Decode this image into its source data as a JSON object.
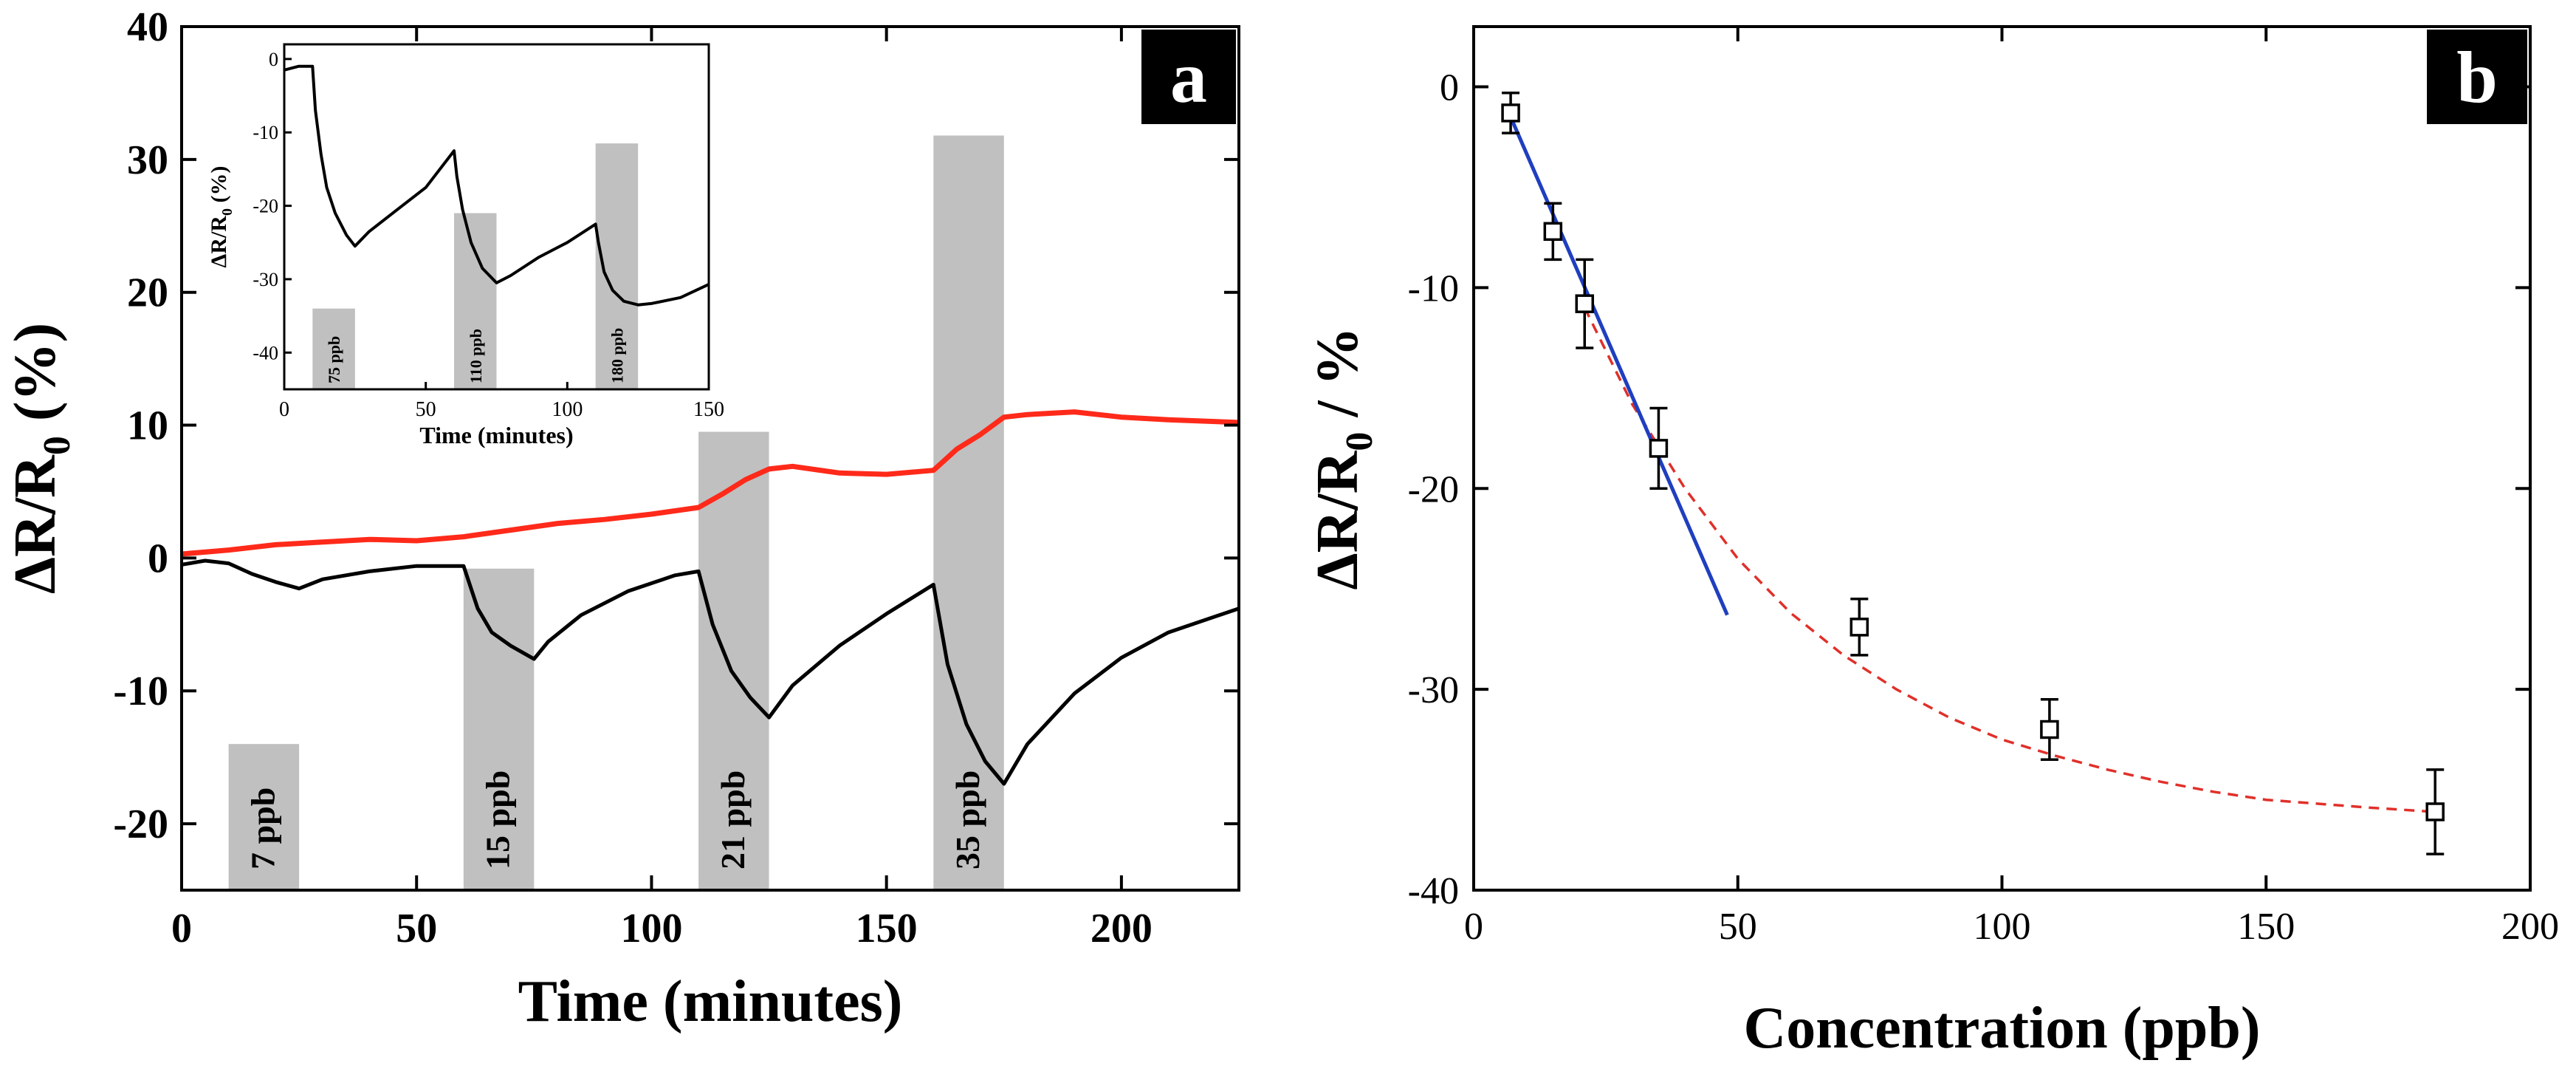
{
  "chart_data": [
    {
      "panel": "a",
      "panel_label": "a",
      "type": "line",
      "xlabel": "Time (minutes)",
      "ylabel_main": "ΔR/R",
      "ylabel_sub": "0",
      "ylabel_tail": " (%)",
      "xlim": [
        0,
        225
      ],
      "ylim": [
        -25,
        40
      ],
      "xticks": [
        0,
        50,
        100,
        150,
        200
      ],
      "yticks": [
        -20,
        -10,
        0,
        10,
        20,
        30,
        40
      ],
      "exposures": [
        {
          "label": "7 ppb",
          "x_start": 10,
          "x_end": 25,
          "y_top": -14
        },
        {
          "label": "15 ppb",
          "x_start": 60,
          "x_end": 75,
          "y_top": -0.8
        },
        {
          "label": "21 ppb",
          "x_start": 110,
          "x_end": 125,
          "y_top": 9.5
        },
        {
          "label": "35 ppb",
          "x_start": 160,
          "x_end": 175,
          "y_top": 31.8
        }
      ],
      "series": [
        {
          "name": "black response",
          "color": "#000000",
          "x": [
            0,
            5,
            10,
            15,
            20,
            25,
            30,
            40,
            50,
            60,
            63,
            66,
            70,
            75,
            78,
            85,
            95,
            105,
            110,
            113,
            117,
            121,
            125,
            130,
            140,
            150,
            160,
            163,
            167,
            171,
            175,
            180,
            190,
            200,
            210,
            225
          ],
          "values": [
            -0.5,
            -0.2,
            -0.4,
            -1.2,
            -1.8,
            -2.3,
            -1.6,
            -1.0,
            -0.6,
            -0.6,
            -3.8,
            -5.6,
            -6.6,
            -7.6,
            -6.3,
            -4.3,
            -2.5,
            -1.3,
            -1.0,
            -5.0,
            -8.5,
            -10.5,
            -12.0,
            -9.6,
            -6.6,
            -4.2,
            -2.0,
            -8.0,
            -12.5,
            -15.3,
            -17.0,
            -14.0,
            -10.2,
            -7.5,
            -5.6,
            -3.8
          ]
        },
        {
          "name": "red response",
          "color": "#ff2a1a",
          "x": [
            0,
            10,
            20,
            30,
            40,
            50,
            60,
            70,
            80,
            90,
            100,
            110,
            115,
            120,
            125,
            130,
            140,
            150,
            160,
            165,
            170,
            175,
            180,
            190,
            200,
            210,
            225
          ],
          "values": [
            0.3,
            0.6,
            1.0,
            1.2,
            1.4,
            1.3,
            1.6,
            2.1,
            2.6,
            2.9,
            3.3,
            3.8,
            4.8,
            5.9,
            6.7,
            6.9,
            6.4,
            6.3,
            6.6,
            8.2,
            9.3,
            10.6,
            10.8,
            11.0,
            10.6,
            10.4,
            10.2
          ]
        }
      ],
      "inset": {
        "xlabel": "Time (minutes)",
        "ylabel_main": "ΔR/R",
        "ylabel_sub": "0",
        "ylabel_tail": " (%)",
        "xlim": [
          0,
          150
        ],
        "ylim": [
          -45,
          2
        ],
        "xticks": [
          0,
          50,
          100,
          150
        ],
        "yticks": [
          0,
          -10,
          -20,
          -30,
          -40
        ],
        "exposures": [
          {
            "label": "75 ppb",
            "x_start": 10,
            "x_end": 25,
            "y_top": -34
          },
          {
            "label": "110 ppb",
            "x_start": 60,
            "x_end": 75,
            "y_top": -21
          },
          {
            "label": "180 ppb",
            "x_start": 110,
            "x_end": 125,
            "y_top": -11.5
          }
        ],
        "series": [
          {
            "name": "inset response",
            "color": "#000000",
            "x": [
              0,
              5,
              8,
              10,
              11,
              13,
              15,
              18,
              22,
              25,
              30,
              40,
              50,
              60,
              61,
              63,
              66,
              70,
              75,
              80,
              90,
              100,
              110,
              111,
              113,
              116,
              120,
              125,
              130,
              140,
              150
            ],
            "values": [
              -1.5,
              -1.0,
              -1.0,
              -1.0,
              -7,
              -13,
              -17.5,
              -21,
              -24,
              -25.5,
              -23.5,
              -20.5,
              -17.5,
              -12.5,
              -16,
              -20.5,
              -25,
              -28.5,
              -30.5,
              -29.5,
              -27,
              -25,
              -22.5,
              -25,
              -29,
              -31.5,
              -33,
              -33.5,
              -33.3,
              -32.5,
              -30.7
            ]
          }
        ]
      }
    },
    {
      "panel": "b",
      "panel_label": "b",
      "type": "scatter",
      "xlabel": "Concentration (ppb)",
      "ylabel_main": "ΔR/R",
      "ylabel_sub": "0",
      "ylabel_tail": " / %",
      "xlim": [
        0,
        200
      ],
      "ylim": [
        -40,
        3
      ],
      "xticks": [
        0,
        50,
        100,
        150,
        200
      ],
      "yticks": [
        0,
        -10,
        -20,
        -30,
        -40
      ],
      "points": [
        {
          "x": 7,
          "y": -1.3,
          "err": 1.0
        },
        {
          "x": 15,
          "y": -7.2,
          "err": 1.4
        },
        {
          "x": 21,
          "y": -10.8,
          "err": 2.2
        },
        {
          "x": 35,
          "y": -18.0,
          "err": 2.0
        },
        {
          "x": 73,
          "y": -26.9,
          "err": 1.4
        },
        {
          "x": 109,
          "y": -32.0,
          "err": 1.5
        },
        {
          "x": 182,
          "y": -36.1,
          "err": 2.1
        }
      ],
      "linear_fit": {
        "color": "#1f3fbf",
        "x": [
          7,
          48
        ],
        "y": [
          -1.5,
          -26.3
        ]
      },
      "curve_fit": {
        "color": "#e0302a",
        "x": [
          21,
          30,
          40,
          50,
          60,
          70,
          80,
          90,
          100,
          110,
          120,
          130,
          140,
          150,
          160,
          170,
          182
        ],
        "y": [
          -11.0,
          -15.8,
          -20.0,
          -23.5,
          -26.2,
          -28.3,
          -30.0,
          -31.4,
          -32.5,
          -33.3,
          -34.0,
          -34.6,
          -35.1,
          -35.5,
          -35.7,
          -35.9,
          -36.1
        ]
      }
    }
  ]
}
